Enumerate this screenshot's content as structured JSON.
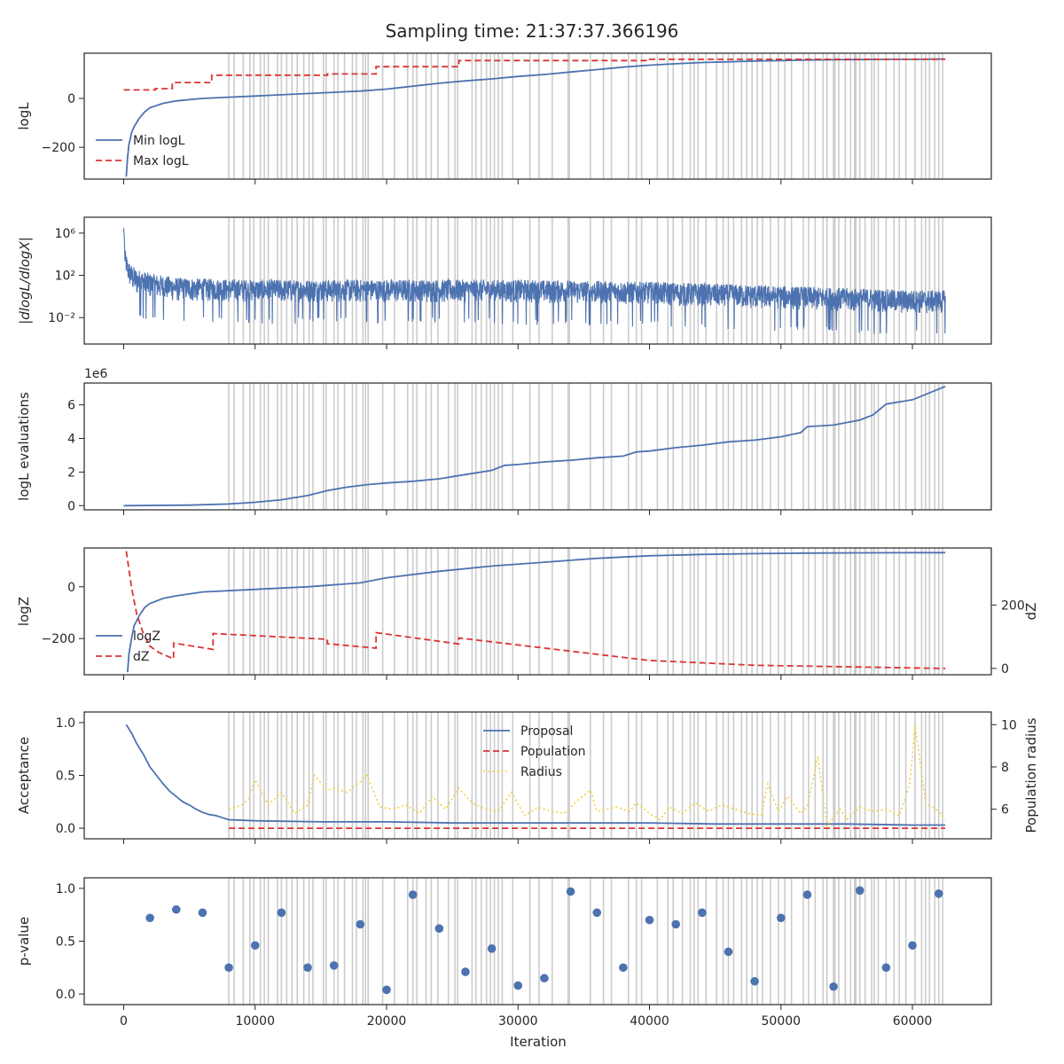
{
  "figure": {
    "title": "Sampling time: 21:37:37.366196",
    "xlabel": "Iteration",
    "x_ticks": [
      0,
      10000,
      20000,
      30000,
      40000,
      50000,
      60000
    ],
    "x_tick_labels": [
      "0",
      "10000",
      "20000",
      "30000",
      "40000",
      "50000",
      "60000"
    ],
    "xlim": [
      -3000,
      66000
    ],
    "colors": {
      "blue": "#4c72b0",
      "red": "#dd3333",
      "gold": "#f2d13a",
      "vline": "#cccccc"
    }
  },
  "insertion_lines": [
    8000,
    8400,
    9100,
    9600,
    9900,
    10400,
    10700,
    11000,
    11700,
    12000,
    12400,
    12800,
    13200,
    13700,
    14100,
    14400,
    15200,
    15400,
    16000,
    16300,
    16800,
    17400,
    17700,
    18200,
    18400,
    18600,
    19700,
    20600,
    21600,
    22000,
    22300,
    23000,
    23400,
    23900,
    24700,
    25200,
    25400,
    26500,
    26800,
    27200,
    27600,
    27900,
    28200,
    28500,
    28800,
    29600,
    30900,
    31600,
    32600,
    33800,
    33900,
    35500,
    36500,
    37100,
    38400,
    39000,
    39400,
    40600,
    41400,
    41800,
    42500,
    43100,
    43400,
    43700,
    44300,
    45100,
    45600,
    46000,
    46400,
    47000,
    47400,
    47800,
    48200,
    48600,
    49200,
    49800,
    50300,
    50800,
    51700,
    52100,
    52600,
    53200,
    53500,
    54000,
    54100,
    54400,
    54900,
    55300,
    55600,
    55700,
    56000,
    56400,
    56900,
    57100,
    57400,
    58000,
    58600,
    59000,
    59500,
    60200,
    60700,
    61000,
    61300,
    61700,
    62000,
    62300
  ],
  "chart_data": [
    {
      "id": "logL",
      "type": "line",
      "ylabel": "logL",
      "ylim": [
        -330,
        185
      ],
      "yticks": [
        -200,
        0
      ],
      "ytick_labels": [
        "−200",
        "0"
      ],
      "legend": {
        "placement": "lower-left",
        "entries": [
          "Min logL",
          "Max logL"
        ]
      },
      "series": [
        {
          "name": "Min logL",
          "style": "solid",
          "color": "#4c72b0",
          "x": [
            200,
            300,
            400,
            600,
            800,
            1200,
            1600,
            2000,
            3000,
            4000,
            5000,
            6000,
            8000,
            10000,
            12000,
            14000,
            16000,
            18000,
            20000,
            22000,
            24000,
            26000,
            28000,
            30000,
            32000,
            34000,
            36000,
            38000,
            40000,
            42000,
            44000,
            46000,
            48000,
            50000,
            52000,
            54000,
            56000,
            58000,
            60000,
            62000,
            62500
          ],
          "y": [
            -320,
            -240,
            -190,
            -140,
            -115,
            -80,
            -55,
            -38,
            -20,
            -10,
            -5,
            0,
            5,
            10,
            15,
            20,
            25,
            30,
            38,
            50,
            62,
            72,
            80,
            90,
            98,
            108,
            118,
            128,
            136,
            142,
            147,
            150,
            153,
            155,
            157,
            158,
            159,
            160,
            160,
            161,
            161
          ]
        },
        {
          "name": "Max logL",
          "style": "dashed",
          "color": "#dd3333",
          "x": [
            0,
            2400,
            2400,
            3700,
            3700,
            6700,
            6700,
            15500,
            15500,
            19200,
            19200,
            25500,
            25500,
            40000,
            40000,
            62500
          ],
          "y": [
            35,
            35,
            40,
            40,
            65,
            65,
            95,
            95,
            100,
            100,
            130,
            130,
            155,
            155,
            160,
            160
          ]
        }
      ]
    },
    {
      "id": "dlogL",
      "type": "line",
      "ylabel": "|dlogL/dlogX|",
      "yscale": "log",
      "ylim_log10": [
        -4.5,
        7.5
      ],
      "yticks_log10": [
        -2,
        2,
        6
      ],
      "ytick_labels": [
        "10⁻²",
        "10²",
        "10⁶"
      ],
      "series": [
        {
          "name": "",
          "style": "noisy",
          "color": "#4c72b0",
          "x": [
            0,
            100,
            300,
            600,
            1000,
            2000,
            4000,
            6000,
            10000,
            15000,
            20000,
            25000,
            30000,
            35000,
            40000,
            45000,
            50000,
            55000,
            60000,
            62500
          ],
          "upper_log10": [
            6.5,
            4.5,
            3.5,
            3.0,
            2.6,
            2.2,
            1.8,
            1.7,
            1.6,
            1.6,
            1.6,
            1.6,
            1.6,
            1.5,
            1.4,
            1.2,
            1.0,
            0.8,
            0.6,
            0.6
          ],
          "lower_log10": [
            3.0,
            1.2,
            0.0,
            -1.2,
            -1.6,
            -1.8,
            -1.9,
            -1.9,
            -2.0,
            -2.0,
            -2.0,
            -2.0,
            -2.1,
            -2.2,
            -2.3,
            -2.5,
            -2.7,
            -2.9,
            -3.1,
            -3.1
          ]
        }
      ]
    },
    {
      "id": "evals",
      "type": "line",
      "ylabel": "logL evaluations",
      "offset_text": "1e6",
      "ylim": [
        -0.25,
        7.3
      ],
      "yticks": [
        0,
        2,
        4,
        6
      ],
      "ytick_labels": [
        "0",
        "2",
        "4",
        "6"
      ],
      "series": [
        {
          "name": "",
          "style": "solid",
          "color": "#4c72b0",
          "x": [
            0,
            5000,
            8000,
            10000,
            12000,
            14000,
            15500,
            17000,
            18500,
            20000,
            22000,
            24000,
            26000,
            28000,
            29000,
            30000,
            32000,
            34000,
            36000,
            38000,
            39000,
            40000,
            42000,
            44000,
            46000,
            48000,
            50000,
            51500,
            52000,
            54000,
            56000,
            57000,
            58000,
            60000,
            62500
          ],
          "y": [
            0,
            0.03,
            0.1,
            0.2,
            0.35,
            0.6,
            0.9,
            1.1,
            1.25,
            1.35,
            1.45,
            1.6,
            1.85,
            2.1,
            2.4,
            2.45,
            2.6,
            2.7,
            2.85,
            2.95,
            3.2,
            3.25,
            3.45,
            3.6,
            3.8,
            3.9,
            4.1,
            4.35,
            4.7,
            4.8,
            5.1,
            5.4,
            6.05,
            6.3,
            7.1
          ]
        }
      ]
    },
    {
      "id": "logZ",
      "type": "line",
      "ylabel": "logZ",
      "ylabel_right": "dZ",
      "ylim": [
        -340,
        150
      ],
      "yticks": [
        -200,
        0
      ],
      "ytick_labels": [
        "−200",
        "0"
      ],
      "ylim_right": [
        -20,
        380
      ],
      "yticks_right": [
        0,
        200
      ],
      "ytick_labels_right": [
        "0",
        "200"
      ],
      "legend": {
        "placement": "lower-left",
        "entries": [
          "logZ",
          "dZ"
        ]
      },
      "series": [
        {
          "name": "logZ",
          "style": "solid",
          "color": "#4c72b0",
          "axis": "left",
          "x": [
            300,
            400,
            600,
            800,
            1200,
            1600,
            2000,
            3000,
            4000,
            6000,
            8000,
            10000,
            14000,
            18000,
            20000,
            24000,
            28000,
            32000,
            36000,
            40000,
            44000,
            48000,
            52000,
            56000,
            60000,
            62500
          ],
          "y": [
            -330,
            -260,
            -200,
            -150,
            -110,
            -80,
            -65,
            -45,
            -35,
            -20,
            -15,
            -10,
            0,
            15,
            35,
            60,
            80,
            95,
            110,
            120,
            125,
            128,
            130,
            131,
            132,
            132
          ]
        },
        {
          "name": "dZ",
          "style": "dashed",
          "color": "#dd3333",
          "axis": "right",
          "x": [
            200,
            600,
            1000,
            1500,
            2000,
            2700,
            3800,
            3800,
            6800,
            6800,
            15500,
            15500,
            19200,
            19200,
            25500,
            25500,
            40000,
            48000,
            62500
          ],
          "y": [
            370,
            255,
            170,
            110,
            70,
            50,
            30,
            80,
            60,
            110,
            92,
            78,
            64,
            113,
            77,
            96,
            25,
            10,
            0
          ]
        }
      ]
    },
    {
      "id": "acceptance",
      "type": "line",
      "ylabel": "Acceptance",
      "ylabel_right": "Population radius",
      "ylim": [
        -0.1,
        1.1
      ],
      "yticks": [
        0,
        0.5,
        1.0
      ],
      "ytick_labels": [
        "0.0",
        "0.5",
        "1.0"
      ],
      "ylim_right": [
        4.6,
        10.6
      ],
      "yticks_right": [
        6,
        8,
        10
      ],
      "ytick_labels_right": [
        "6",
        "8",
        "10"
      ],
      "legend": {
        "placement": "top-center",
        "entries": [
          "Proposal",
          "Population",
          "Radius"
        ]
      },
      "series": [
        {
          "name": "Proposal",
          "style": "solid",
          "color": "#4c72b0",
          "axis": "left",
          "x": [
            200,
            600,
            1000,
            1500,
            2000,
            2500,
            3000,
            3500,
            4000,
            4500,
            5000,
            5500,
            6000,
            6500,
            7000,
            7500,
            8000,
            10000,
            15000,
            20000,
            25000,
            30000,
            35000,
            40000,
            45000,
            50000,
            55000,
            60000,
            62500
          ],
          "y": [
            0.98,
            0.9,
            0.8,
            0.7,
            0.58,
            0.5,
            0.42,
            0.35,
            0.3,
            0.25,
            0.22,
            0.18,
            0.15,
            0.13,
            0.12,
            0.1,
            0.08,
            0.07,
            0.06,
            0.06,
            0.05,
            0.05,
            0.05,
            0.05,
            0.04,
            0.04,
            0.04,
            0.03,
            0.03
          ]
        },
        {
          "name": "Population",
          "style": "dashed",
          "color": "#dd3333",
          "axis": "left",
          "x": [
            8000,
            62500
          ],
          "y": [
            0,
            0
          ]
        },
        {
          "name": "Radius",
          "style": "dotted",
          "color": "#f2d13a",
          "axis": "right",
          "x": [
            8000,
            9000,
            9500,
            10000,
            11000,
            12000,
            13000,
            14000,
            14500,
            15500,
            16000,
            17000,
            18000,
            18500,
            19500,
            20500,
            21500,
            22500,
            23500,
            24500,
            25500,
            26500,
            27500,
            28500,
            29500,
            30500,
            31500,
            32500,
            33500,
            34500,
            35500,
            36000,
            37500,
            38500,
            39000,
            40000,
            40800,
            41500,
            42500,
            43500,
            44500,
            45500,
            46500,
            47500,
            48500,
            49000,
            49800,
            50500,
            51500,
            52000,
            52800,
            53500,
            54500,
            55000,
            56000,
            57000,
            58000,
            59000,
            59800,
            60200,
            61000,
            62000,
            62500
          ],
          "y": [
            6.0,
            6.2,
            6.5,
            7.4,
            6.2,
            6.8,
            5.8,
            6.2,
            7.6,
            6.9,
            7.0,
            6.8,
            7.3,
            7.6,
            6.1,
            6.0,
            6.2,
            5.8,
            6.6,
            6.0,
            7.0,
            6.3,
            6.0,
            5.9,
            6.8,
            5.7,
            6.1,
            5.9,
            5.8,
            6.4,
            6.9,
            5.9,
            6.1,
            5.9,
            6.3,
            5.8,
            5.5,
            6.1,
            5.8,
            6.3,
            5.9,
            6.2,
            6.0,
            5.8,
            5.7,
            7.2,
            5.9,
            6.6,
            5.8,
            6.1,
            8.5,
            5.2,
            6.0,
            5.5,
            6.1,
            5.9,
            6.0,
            5.7,
            7.2,
            10.0,
            6.3,
            5.9,
            5.5
          ]
        }
      ]
    },
    {
      "id": "pvalue",
      "type": "scatter",
      "ylabel": "p-value",
      "ylim": [
        -0.1,
        1.1
      ],
      "yticks": [
        0,
        0.5,
        1.0
      ],
      "ytick_labels": [
        "0.0",
        "0.5",
        "1.0"
      ],
      "series": [
        {
          "name": "",
          "style": "points",
          "color": "#4c72b0",
          "x": [
            2000,
            4000,
            6000,
            8000,
            10000,
            12000,
            14000,
            16000,
            18000,
            20000,
            22000,
            24000,
            26000,
            28000,
            30000,
            32000,
            34000,
            36000,
            38000,
            40000,
            42000,
            44000,
            46000,
            48000,
            50000,
            52000,
            54000,
            56000,
            58000,
            60000,
            62000
          ],
          "y": [
            0.72,
            0.8,
            0.77,
            0.25,
            0.46,
            0.77,
            0.25,
            0.27,
            0.66,
            0.04,
            0.94,
            0.62,
            0.21,
            0.43,
            0.08,
            0.15,
            0.97,
            0.77,
            0.25,
            0.7,
            0.66,
            0.77,
            0.4,
            0.12,
            0.72,
            0.94,
            0.07,
            0.98,
            0.25,
            0.46,
            0.95
          ]
        }
      ]
    }
  ]
}
